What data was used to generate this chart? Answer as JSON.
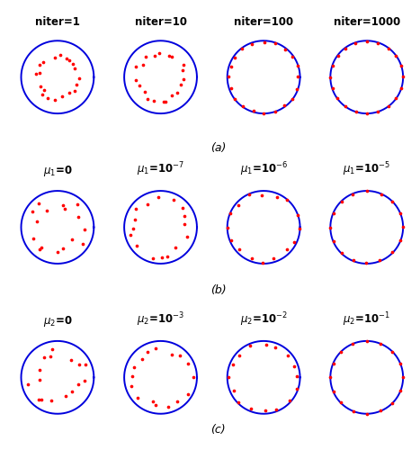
{
  "blue_circle_color": "#0000dd",
  "red_dot_color": "#ff0000",
  "title_fontsize": 8.5,
  "sublabel_fontsize": 9,
  "background_color": "#ffffff",
  "scatter_configs": [
    [
      {
        "mean_r": 0.58,
        "r_noise": 0.07,
        "ang_noise": 0.18,
        "n_dots": 20
      },
      {
        "mean_r": 0.66,
        "r_noise": 0.07,
        "ang_noise": 0.14,
        "n_dots": 20
      },
      {
        "mean_r": 0.97,
        "r_noise": 0.025,
        "ang_noise": 0.04,
        "n_dots": 20
      },
      {
        "mean_r": 0.99,
        "r_noise": 0.008,
        "ang_noise": 0.015,
        "n_dots": 20
      }
    ],
    [
      {
        "mean_r": 0.68,
        "r_noise": 0.18,
        "ang_noise": 0.28,
        "n_dots": 16
      },
      {
        "mean_r": 0.8,
        "r_noise": 0.13,
        "ang_noise": 0.18,
        "n_dots": 16
      },
      {
        "mean_r": 0.93,
        "r_noise": 0.06,
        "ang_noise": 0.09,
        "n_dots": 16
      },
      {
        "mean_r": 0.985,
        "r_noise": 0.015,
        "ang_noise": 0.025,
        "n_dots": 16
      }
    ],
    [
      {
        "mean_r": 0.68,
        "r_noise": 0.18,
        "ang_noise": 0.28,
        "n_dots": 16
      },
      {
        "mean_r": 0.8,
        "r_noise": 0.13,
        "ang_noise": 0.18,
        "n_dots": 16
      },
      {
        "mean_r": 0.94,
        "r_noise": 0.05,
        "ang_noise": 0.07,
        "n_dots": 16
      },
      {
        "mean_r": 0.99,
        "r_noise": 0.008,
        "ang_noise": 0.01,
        "n_dots": 16
      }
    ]
  ],
  "row_labels": [
    [
      "niter=1",
      "niter=10",
      "niter=100",
      "niter=1000"
    ],
    [
      "μ_1=0",
      "μ_1=10^{-7}",
      "μ_1=10^{-6}",
      "μ_1=10^{-5}"
    ],
    [
      "μ_2=0",
      "μ_2=10^{-3}",
      "μ_2=10^{-2}",
      "μ_2=10^{-1}"
    ]
  ],
  "sublabels": [
    "(a)",
    "(b)",
    "(c)"
  ],
  "mu1_exponents": [
    "",
    "-7",
    "-6",
    "-5"
  ],
  "mu2_exponents": [
    "",
    "-3",
    "-2",
    "-1"
  ]
}
